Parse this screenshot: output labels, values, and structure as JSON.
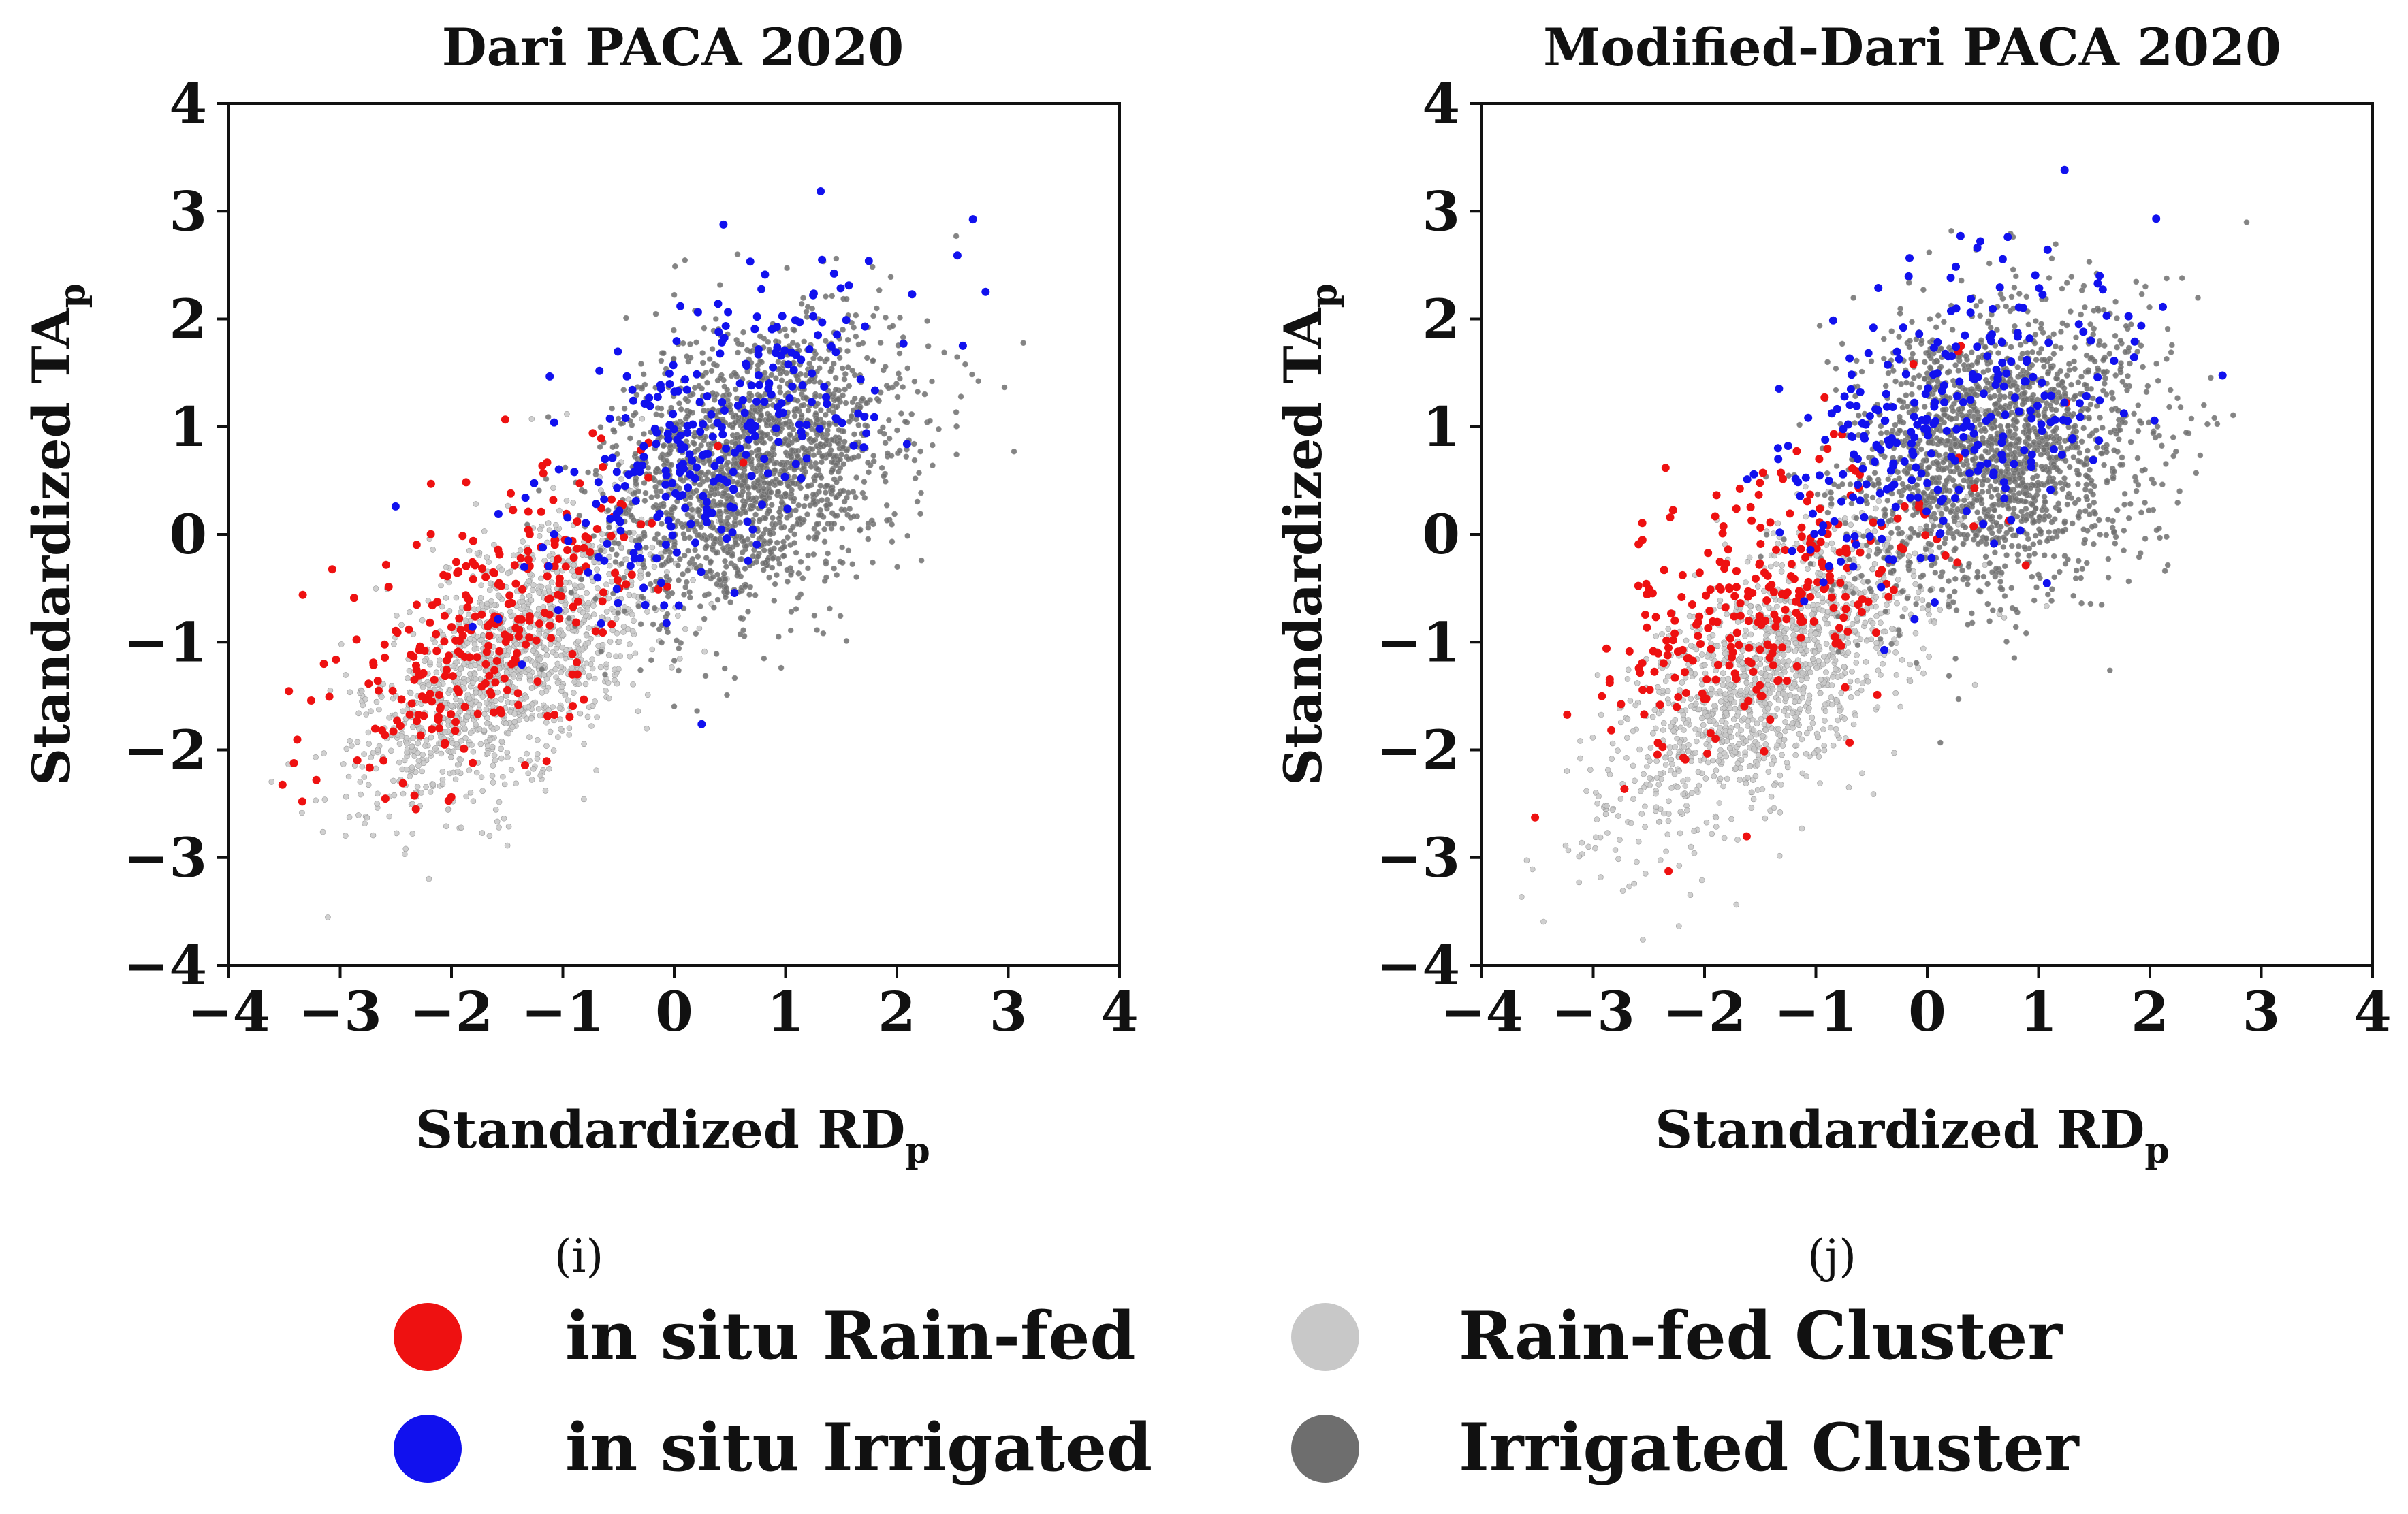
{
  "chart_data": [
    {
      "panel": "i",
      "type": "scatter",
      "title": "Dari PACA 2020",
      "xlabel": {
        "main": "Standardized RD",
        "sub": "p"
      },
      "ylabel": {
        "main": "Standardized TA",
        "sub": "p"
      },
      "xlim": [
        -4,
        4
      ],
      "ylim": [
        -4,
        4
      ],
      "xticks": [
        "−4",
        "−3",
        "−2",
        "−1",
        "0",
        "1",
        "2",
        "3",
        "4"
      ],
      "yticks": [
        "−4",
        "−3",
        "−2",
        "−1",
        "0",
        "1",
        "2",
        "3",
        "4"
      ],
      "xtick_values": [
        -4,
        -3,
        -2,
        -1,
        0,
        1,
        2,
        3,
        4
      ],
      "ytick_values": [
        -4,
        -3,
        -2,
        -1,
        0,
        1,
        2,
        3,
        4
      ],
      "grid": false,
      "series": [
        {
          "name": "Rain-fed Cluster",
          "color": "#c8c8c8",
          "distribution": {
            "count": 1400,
            "center": [
              -1.5,
              -1.2
            ],
            "spread_along": 0.85,
            "spread_across": 0.42,
            "seed": 11
          }
        },
        {
          "name": "Irrigated Cluster",
          "color": "#6e6e6e",
          "distribution": {
            "count": 1900,
            "center": [
              0.7,
              0.6
            ],
            "spread_along": 0.75,
            "spread_across": 0.55,
            "seed": 23
          }
        },
        {
          "name": "in situ Rain-fed",
          "color": "#ee1111",
          "distribution": {
            "count": 290,
            "center": [
              -1.6,
              -0.8
            ],
            "spread_along": 0.9,
            "spread_across": 0.45,
            "seed": 37
          }
        },
        {
          "name": "in situ Irrigated",
          "color": "#1111ee",
          "distribution": {
            "count": 290,
            "center": [
              0.3,
              0.9
            ],
            "spread_along": 0.95,
            "spread_across": 0.55,
            "seed": 41
          }
        }
      ]
    },
    {
      "panel": "j",
      "type": "scatter",
      "title": "Modified-Dari PACA 2020",
      "xlabel": {
        "main": "Standardized RD",
        "sub": "p"
      },
      "ylabel": {
        "main": "Standardized TA",
        "sub": "p"
      },
      "xlim": [
        -4,
        4
      ],
      "ylim": [
        -4,
        4
      ],
      "xticks": [
        "−4",
        "−3",
        "−2",
        "−1",
        "0",
        "1",
        "2",
        "3",
        "4"
      ],
      "yticks": [
        "−4",
        "−3",
        "−2",
        "−1",
        "0",
        "1",
        "2",
        "3",
        "4"
      ],
      "xtick_values": [
        -4,
        -3,
        -2,
        -1,
        0,
        1,
        2,
        3,
        4
      ],
      "ytick_values": [
        -4,
        -3,
        -2,
        -1,
        0,
        1,
        2,
        3,
        4
      ],
      "grid": false,
      "series": [
        {
          "name": "Rain-fed Cluster",
          "color": "#c8c8c8",
          "distribution": {
            "count": 1400,
            "center": [
              -1.4,
              -1.3
            ],
            "spread_along": 0.9,
            "spread_across": 0.42,
            "seed": 53
          }
        },
        {
          "name": "Irrigated Cluster",
          "color": "#6e6e6e",
          "distribution": {
            "count": 1900,
            "center": [
              0.6,
              0.8
            ],
            "spread_along": 0.75,
            "spread_across": 0.6,
            "seed": 67
          }
        },
        {
          "name": "in situ Rain-fed",
          "color": "#ee1111",
          "distribution": {
            "count": 290,
            "center": [
              -1.5,
              -0.6
            ],
            "spread_along": 0.95,
            "spread_across": 0.5,
            "seed": 71
          }
        },
        {
          "name": "in situ Irrigated",
          "color": "#1111ee",
          "distribution": {
            "count": 290,
            "center": [
              0.1,
              1.0
            ],
            "spread_along": 0.95,
            "spread_across": 0.6,
            "seed": 83
          }
        }
      ]
    }
  ],
  "panel_labels": [
    "(i)",
    "(j)"
  ],
  "legend": {
    "position": "bottom",
    "items": [
      {
        "label": "in situ Rain-fed",
        "color": "#ee1111"
      },
      {
        "label": "Rain-fed Cluster",
        "color": "#c8c8c8"
      },
      {
        "label": "in situ Irrigated",
        "color": "#1111ee"
      },
      {
        "label": "Irrigated Cluster",
        "color": "#6e6e6e"
      }
    ]
  }
}
